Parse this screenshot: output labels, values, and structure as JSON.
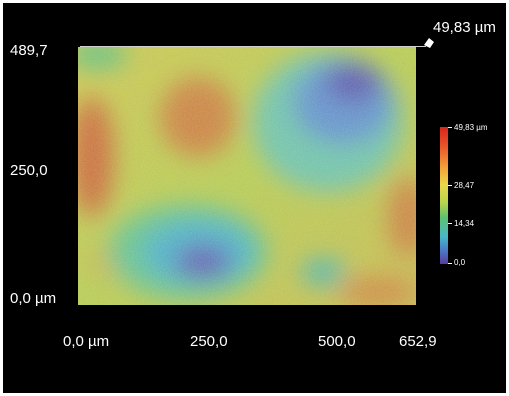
{
  "axes": {
    "y_max_label": "489,7",
    "y_mid_label": "250,0",
    "y_min_label": "0,0 µm",
    "x_min_label": "0,0 µm",
    "x_tick_1": "250,0",
    "x_tick_2": "500,0",
    "x_max_label": "652,9",
    "z_max_label": "49,83 µm"
  },
  "colorbar": {
    "top_label": "49,83 µm",
    "label_2": "28,47",
    "label_3": "14,34",
    "bottom_label": "0,0"
  },
  "colors": {
    "background": "#000000",
    "high": "#d7261e",
    "mid_high": "#e9d84a",
    "mid": "#5ec270",
    "mid_low": "#48b8c8",
    "low": "#5a3aa0"
  }
}
